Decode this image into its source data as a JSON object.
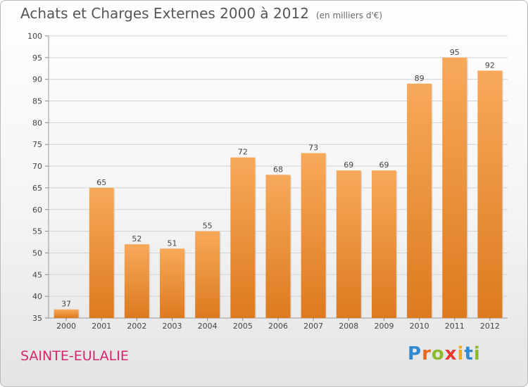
{
  "title": "Achats et Charges Externes 2000 à 2012",
  "unit_note": "(en milliers d'€)",
  "location": "SAINTE-EULALIE",
  "brand": {
    "letters": [
      "P",
      "r",
      "o",
      "x",
      "i",
      "t",
      "i"
    ],
    "colors": [
      "#2f8ad1",
      "#e8691f",
      "#8bbb2d",
      "#e8382f",
      "#f0a81e",
      "#2f8ad1",
      "#8bbb2d"
    ]
  },
  "colors": {
    "bar_light": "#f7a95a",
    "bar_dark": "#dd7a1e",
    "grid": "#d2d2d2",
    "axis_text": "#444444"
  },
  "chart_data": {
    "type": "bar",
    "categories": [
      "2000",
      "2001",
      "2002",
      "2003",
      "2004",
      "2005",
      "2006",
      "2007",
      "2008",
      "2009",
      "2010",
      "2011",
      "2012"
    ],
    "values": [
      37,
      65,
      52,
      51,
      55,
      72,
      68,
      73,
      69,
      69,
      89,
      95,
      92
    ],
    "yticks": [
      35,
      40,
      45,
      50,
      55,
      60,
      65,
      70,
      75,
      80,
      85,
      90,
      95,
      100
    ],
    "ylim": [
      35,
      100
    ],
    "title": "Achats et Charges Externes 2000 à 2012",
    "xlabel": "",
    "ylabel": "",
    "grid": true
  }
}
